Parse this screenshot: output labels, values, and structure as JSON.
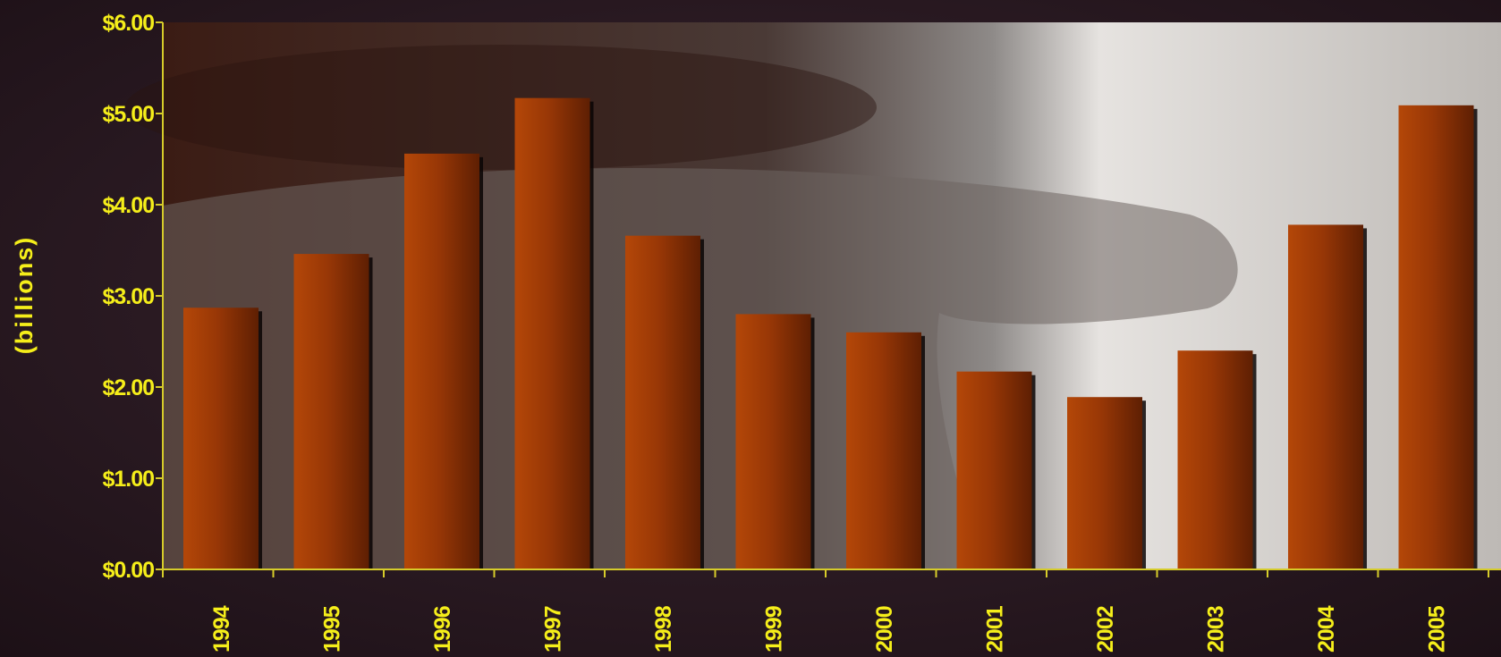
{
  "chart_data": {
    "type": "bar",
    "title": "",
    "xlabel": "",
    "ylabel": "(billions)",
    "ylim": [
      0,
      6
    ],
    "yticks": [
      "$0.00",
      "$1.00",
      "$2.00",
      "$3.00",
      "$4.00",
      "$5.00",
      "$6.00"
    ],
    "categories": [
      "1994",
      "1995",
      "1996",
      "1997",
      "1998",
      "1999",
      "2000",
      "2001",
      "2002",
      "2003",
      "2004",
      "2005"
    ],
    "values": [
      2.87,
      3.46,
      4.56,
      5.17,
      3.66,
      2.8,
      2.6,
      2.17,
      1.89,
      2.4,
      3.78,
      5.09
    ],
    "grid": false,
    "legend": "none"
  },
  "colors": {
    "text": "#f5ee1a",
    "axis": "#d6cc2a",
    "bar_light": "#b44708",
    "bar_mid": "#983706",
    "bar_dark": "#5e1f03",
    "shadow": "#0a0505",
    "background": "#2a1a24"
  }
}
